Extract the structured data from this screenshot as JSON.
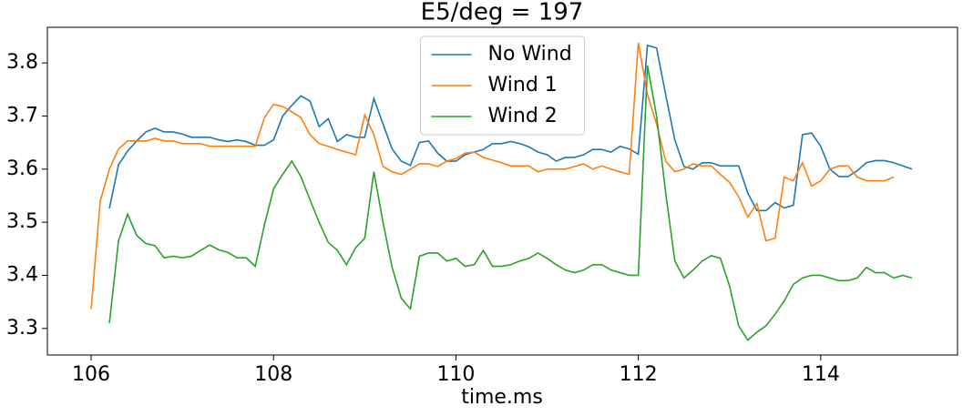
{
  "chart_data": {
    "type": "line",
    "title": "E5/deg = 197",
    "x_label": "time.ms",
    "x": [
      106,
      106.1,
      106.2,
      106.3,
      106.4,
      106.5,
      106.6,
      106.7,
      106.8,
      106.9,
      107,
      107.1,
      107.2,
      107.3,
      107.4,
      107.5,
      107.6,
      107.7,
      107.8,
      107.9,
      108,
      108.1,
      108.2,
      108.3,
      108.4,
      108.5,
      108.6,
      108.7,
      108.8,
      108.9,
      109,
      109.1,
      109.2,
      109.3,
      109.4,
      109.5,
      109.6,
      109.7,
      109.8,
      109.9,
      110,
      110.1,
      110.2,
      110.3,
      110.4,
      110.5,
      110.6,
      110.7,
      110.8,
      110.9,
      111,
      111.1,
      111.2,
      111.3,
      111.4,
      111.5,
      111.6,
      111.7,
      111.8,
      111.9,
      112,
      112.1,
      112.2,
      112.3,
      112.4,
      112.5,
      112.6,
      112.7,
      112.8,
      112.9,
      113,
      113.1,
      113.2,
      113.3,
      113.4,
      113.5,
      113.6,
      113.7,
      113.8,
      113.9,
      114,
      114.1,
      114.2,
      114.3,
      114.4,
      114.5,
      114.6,
      114.7,
      114.8,
      114.9,
      115
    ],
    "series": [
      {
        "name": "No Wind",
        "color": "#1f77b4",
        "values": [
          null,
          null,
          3.526,
          3.608,
          3.634,
          3.653,
          3.67,
          3.677,
          3.67,
          3.67,
          3.666,
          3.66,
          3.66,
          3.66,
          3.655,
          3.652,
          3.655,
          3.652,
          3.645,
          3.645,
          3.655,
          3.7,
          3.72,
          3.738,
          3.728,
          3.68,
          3.695,
          3.652,
          3.665,
          3.66,
          3.66,
          3.733,
          3.685,
          3.638,
          3.615,
          3.607,
          3.65,
          3.653,
          3.63,
          3.615,
          3.615,
          3.627,
          3.632,
          3.637,
          3.648,
          3.648,
          3.652,
          3.648,
          3.642,
          3.632,
          3.627,
          3.615,
          3.622,
          3.622,
          3.627,
          3.637,
          3.637,
          3.632,
          3.643,
          3.638,
          3.628,
          3.833,
          3.828,
          3.74,
          3.655,
          3.605,
          3.6,
          3.612,
          3.612,
          3.606,
          3.606,
          3.606,
          3.555,
          3.522,
          3.522,
          3.537,
          3.527,
          3.532,
          3.665,
          3.668,
          3.643,
          3.6,
          3.586,
          3.586,
          3.597,
          3.612,
          3.616,
          3.616,
          3.612,
          3.606,
          3.6
        ]
      },
      {
        "name": "Wind 1",
        "color": "#ff7f0e",
        "values": [
          3.337,
          3.54,
          3.6,
          3.638,
          3.653,
          3.653,
          3.653,
          3.658,
          3.653,
          3.653,
          3.648,
          3.648,
          3.648,
          3.643,
          3.643,
          3.643,
          3.643,
          3.643,
          3.643,
          3.697,
          3.722,
          3.718,
          3.708,
          3.697,
          3.665,
          3.648,
          3.643,
          3.637,
          3.632,
          3.627,
          3.702,
          3.665,
          3.605,
          3.595,
          3.59,
          3.6,
          3.61,
          3.61,
          3.605,
          3.615,
          3.62,
          3.63,
          3.632,
          3.622,
          3.617,
          3.612,
          3.606,
          3.606,
          3.606,
          3.595,
          3.6,
          3.6,
          3.6,
          3.605,
          3.61,
          3.6,
          3.606,
          3.6,
          3.595,
          3.59,
          3.838,
          3.74,
          3.685,
          3.615,
          3.595,
          3.6,
          3.61,
          3.606,
          3.606,
          3.59,
          3.575,
          3.548,
          3.51,
          3.535,
          3.465,
          3.47,
          3.585,
          3.578,
          3.612,
          3.568,
          3.578,
          3.6,
          3.606,
          3.606,
          3.585,
          3.578,
          3.578,
          3.578,
          3.585,
          null,
          null
        ]
      },
      {
        "name": "Wind 2",
        "color": "#2ca02c",
        "values": [
          null,
          null,
          3.31,
          3.465,
          3.515,
          3.475,
          3.46,
          3.456,
          3.433,
          3.436,
          3.433,
          3.436,
          3.447,
          3.457,
          3.448,
          3.443,
          3.433,
          3.433,
          3.417,
          3.495,
          3.563,
          3.59,
          3.615,
          3.586,
          3.542,
          3.5,
          3.462,
          3.447,
          3.42,
          3.452,
          3.47,
          3.595,
          3.5,
          3.415,
          3.357,
          3.337,
          3.436,
          3.442,
          3.442,
          3.427,
          3.432,
          3.417,
          3.42,
          3.447,
          3.417,
          3.417,
          3.42,
          3.427,
          3.432,
          3.442,
          3.432,
          3.42,
          3.41,
          3.405,
          3.41,
          3.42,
          3.42,
          3.41,
          3.405,
          3.4,
          3.4,
          3.795,
          3.7,
          3.555,
          3.427,
          3.395,
          3.41,
          3.427,
          3.437,
          3.432,
          3.38,
          3.305,
          3.278,
          3.293,
          3.305,
          3.327,
          3.352,
          3.383,
          3.395,
          3.4,
          3.4,
          3.395,
          3.39,
          3.39,
          3.395,
          3.415,
          3.405,
          3.405,
          3.395,
          3.4,
          3.395
        ]
      }
    ],
    "xlim": [
      105.52,
      115.5
    ],
    "xticks": [
      106,
      108,
      110,
      112,
      114
    ],
    "ylim": [
      3.25,
      3.867
    ],
    "yticks": [
      3.3,
      3.4,
      3.5,
      3.6,
      3.7,
      3.8
    ],
    "legend": "upper center"
  }
}
